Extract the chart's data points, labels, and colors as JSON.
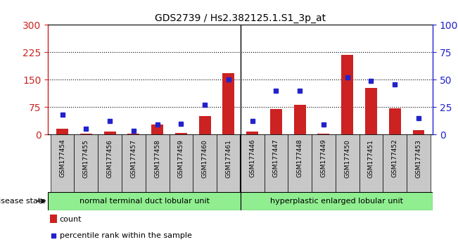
{
  "title": "GDS2739 / Hs2.382125.1.S1_3p_at",
  "samples": [
    "GSM177454",
    "GSM177455",
    "GSM177456",
    "GSM177457",
    "GSM177458",
    "GSM177459",
    "GSM177460",
    "GSM177461",
    "GSM177446",
    "GSM177447",
    "GSM177448",
    "GSM177449",
    "GSM177450",
    "GSM177451",
    "GSM177452",
    "GSM177453"
  ],
  "counts": [
    15,
    3,
    8,
    2,
    28,
    5,
    50,
    168,
    8,
    70,
    82,
    2,
    218,
    128,
    72,
    12
  ],
  "percentiles": [
    18,
    5,
    12,
    3,
    9,
    10,
    27,
    50,
    12,
    40,
    40,
    9,
    52,
    49,
    46,
    15
  ],
  "group1_n": 8,
  "group2_n": 8,
  "group1_label": "normal terminal duct lobular unit",
  "group2_label": "hyperplastic enlarged lobular unit",
  "disease_state_label": "disease state",
  "count_color": "#cc2222",
  "percentile_color": "#2222cc",
  "ylim_left": [
    0,
    300
  ],
  "ylim_right": [
    0,
    100
  ],
  "yticks_left": [
    0,
    75,
    150,
    225,
    300
  ],
  "yticks_right": [
    0,
    25,
    50,
    75,
    100
  ],
  "bg_color": "#ffffff",
  "group_bg": "#90ee90",
  "xtick_bg": "#c8c8c8",
  "bar_width": 0.5,
  "legend_count": "count",
  "legend_percentile": "percentile rank within the sample"
}
